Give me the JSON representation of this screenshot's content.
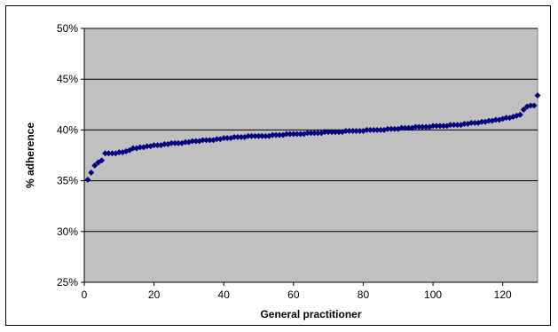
{
  "chart_data": {
    "type": "scatter",
    "title": "",
    "xlabel": "General practitioner",
    "ylabel": "% adherence",
    "xlim": [
      0,
      130
    ],
    "ylim": [
      25,
      50
    ],
    "x_ticks": [
      0,
      20,
      40,
      60,
      80,
      100,
      120
    ],
    "y_ticks": [
      25,
      30,
      35,
      40,
      45,
      50
    ],
    "y_tick_labels": [
      "25%",
      "30%",
      "35%",
      "40%",
      "45%",
      "50%"
    ],
    "grid": "horizontal",
    "legend": "none",
    "colors": {
      "plot_background": "#c0c0c0",
      "marker": "#000080",
      "grid": "#000000"
    },
    "series": [
      {
        "marker": "diamond",
        "x": [
          1,
          2,
          3,
          4,
          5,
          6,
          7,
          8,
          9,
          10,
          11,
          12,
          13,
          14,
          15,
          16,
          17,
          18,
          19,
          20,
          21,
          22,
          23,
          24,
          25,
          26,
          27,
          28,
          29,
          30,
          31,
          32,
          33,
          34,
          35,
          36,
          37,
          38,
          39,
          40,
          41,
          42,
          43,
          44,
          45,
          46,
          47,
          48,
          49,
          50,
          51,
          52,
          53,
          54,
          55,
          56,
          57,
          58,
          59,
          60,
          61,
          62,
          63,
          64,
          65,
          66,
          67,
          68,
          69,
          70,
          71,
          72,
          73,
          74,
          75,
          76,
          77,
          78,
          79,
          80,
          81,
          82,
          83,
          84,
          85,
          86,
          87,
          88,
          89,
          90,
          91,
          92,
          93,
          94,
          95,
          96,
          97,
          98,
          99,
          100,
          101,
          102,
          103,
          104,
          105,
          106,
          107,
          108,
          109,
          110,
          111,
          112,
          113,
          114,
          115,
          116,
          117,
          118,
          119,
          120,
          121,
          122,
          123,
          124,
          125,
          126,
          127,
          128,
          129,
          130
        ],
        "y": [
          35.1,
          35.8,
          36.5,
          36.8,
          37.0,
          37.7,
          37.7,
          37.7,
          37.7,
          37.8,
          37.8,
          37.9,
          38.0,
          38.2,
          38.2,
          38.3,
          38.3,
          38.4,
          38.4,
          38.5,
          38.5,
          38.5,
          38.6,
          38.6,
          38.7,
          38.7,
          38.7,
          38.7,
          38.8,
          38.8,
          38.9,
          38.9,
          38.9,
          39.0,
          39.0,
          39.0,
          39.0,
          39.1,
          39.1,
          39.2,
          39.2,
          39.2,
          39.3,
          39.3,
          39.3,
          39.3,
          39.4,
          39.4,
          39.4,
          39.4,
          39.4,
          39.4,
          39.4,
          39.5,
          39.5,
          39.5,
          39.5,
          39.6,
          39.6,
          39.6,
          39.6,
          39.6,
          39.6,
          39.7,
          39.7,
          39.7,
          39.7,
          39.7,
          39.8,
          39.8,
          39.8,
          39.8,
          39.8,
          39.8,
          39.9,
          39.9,
          39.9,
          39.9,
          39.9,
          39.9,
          40.0,
          40.0,
          40.0,
          40.0,
          40.0,
          40.0,
          40.1,
          40.1,
          40.1,
          40.1,
          40.2,
          40.2,
          40.2,
          40.2,
          40.3,
          40.3,
          40.3,
          40.3,
          40.3,
          40.4,
          40.4,
          40.4,
          40.4,
          40.4,
          40.5,
          40.5,
          40.5,
          40.5,
          40.6,
          40.6,
          40.7,
          40.7,
          40.7,
          40.8,
          40.8,
          40.9,
          40.9,
          41.0,
          41.0,
          41.1,
          41.2,
          41.2,
          41.3,
          41.4,
          41.5,
          42.0,
          42.3,
          42.4,
          42.4,
          43.4
        ]
      }
    ]
  }
}
